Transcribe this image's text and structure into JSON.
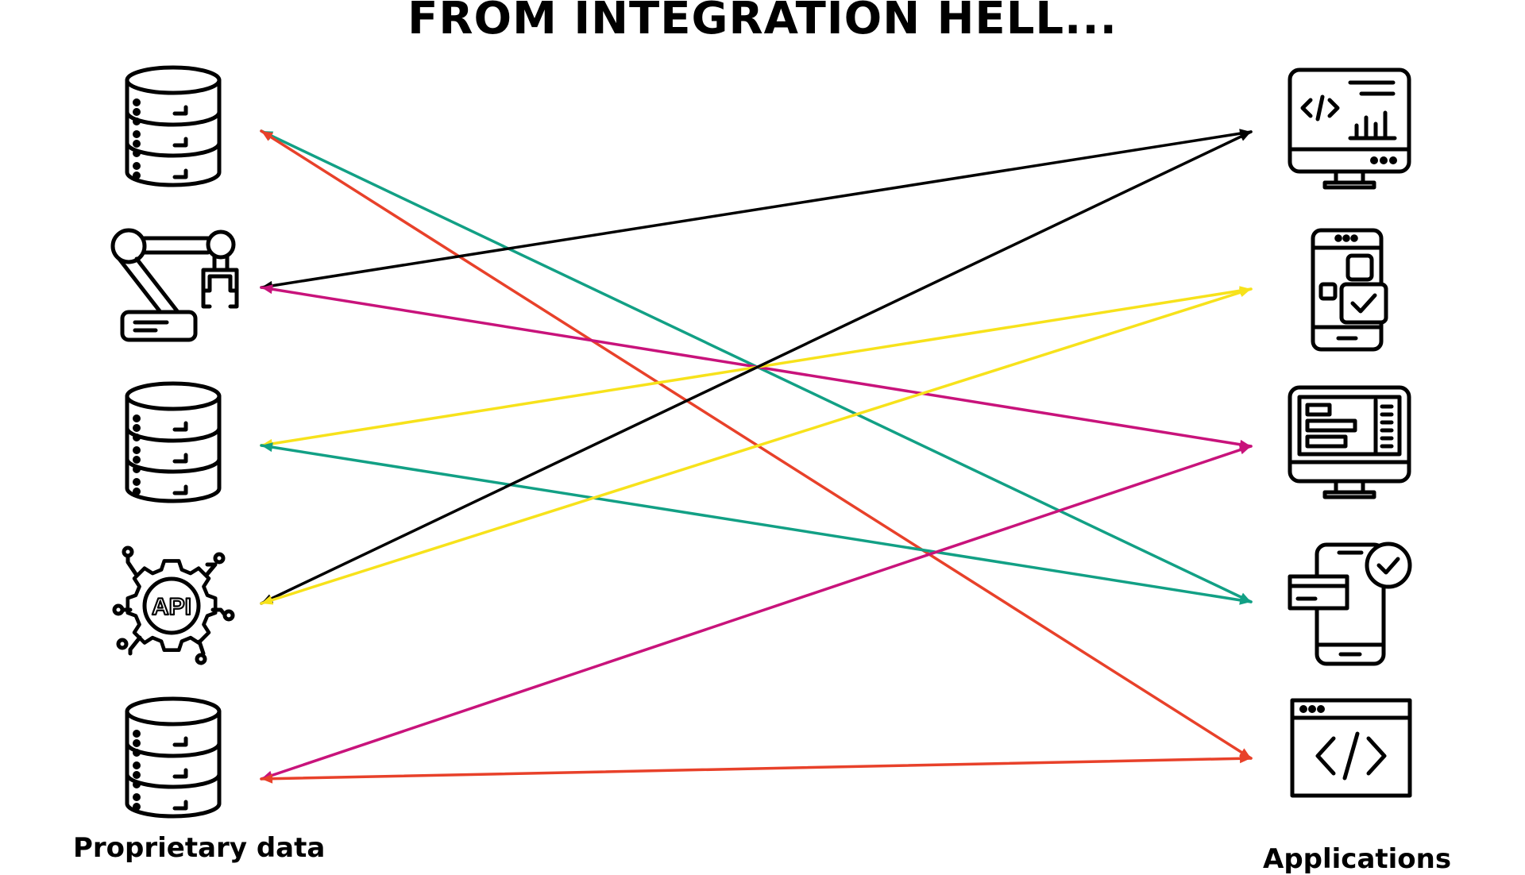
{
  "diagram": {
    "title": "FROM INTEGRATION HELL...",
    "left_label": "Proprietary data",
    "right_label": "Applications",
    "sources": [
      {
        "id": "db1",
        "icon": "database-icon"
      },
      {
        "id": "robot",
        "icon": "robotic-arm-icon"
      },
      {
        "id": "db2",
        "icon": "database-icon"
      },
      {
        "id": "api",
        "icon": "api-gear-icon"
      },
      {
        "id": "db3",
        "icon": "database-icon"
      }
    ],
    "applications": [
      {
        "id": "analytics",
        "icon": "code-analytics-monitor-icon"
      },
      {
        "id": "mobile-app",
        "icon": "mobile-app-checklist-icon"
      },
      {
        "id": "dashboard",
        "icon": "dashboard-monitor-icon"
      },
      {
        "id": "mobile-payment",
        "icon": "mobile-payment-check-icon"
      },
      {
        "id": "web-code",
        "icon": "browser-code-window-icon"
      }
    ],
    "connections": [
      {
        "from": "db1",
        "to": "mobile-payment",
        "color": "#12a085",
        "arrow": "start-end"
      },
      {
        "from": "db1",
        "to": "web-code",
        "color": "#e8412a",
        "arrow": "start-end"
      },
      {
        "from": "robot",
        "to": "analytics",
        "color": "#000000",
        "arrow": "start-end"
      },
      {
        "from": "robot",
        "to": "dashboard",
        "color": "#c8137b",
        "arrow": "start-end"
      },
      {
        "from": "db2",
        "to": "mobile-app",
        "color": "#f7e21b",
        "arrow": "start-end"
      },
      {
        "from": "db2",
        "to": "mobile-payment",
        "color": "#12a085",
        "arrow": "start-end"
      },
      {
        "from": "api",
        "to": "analytics",
        "color": "#000000",
        "arrow": "start-end"
      },
      {
        "from": "api",
        "to": "mobile-app",
        "color": "#f7e21b",
        "arrow": "start-end"
      },
      {
        "from": "db3",
        "to": "dashboard",
        "color": "#c8137b",
        "arrow": "start-end"
      },
      {
        "from": "db3",
        "to": "web-code",
        "color": "#e8412a",
        "arrow": "start-end"
      }
    ]
  }
}
